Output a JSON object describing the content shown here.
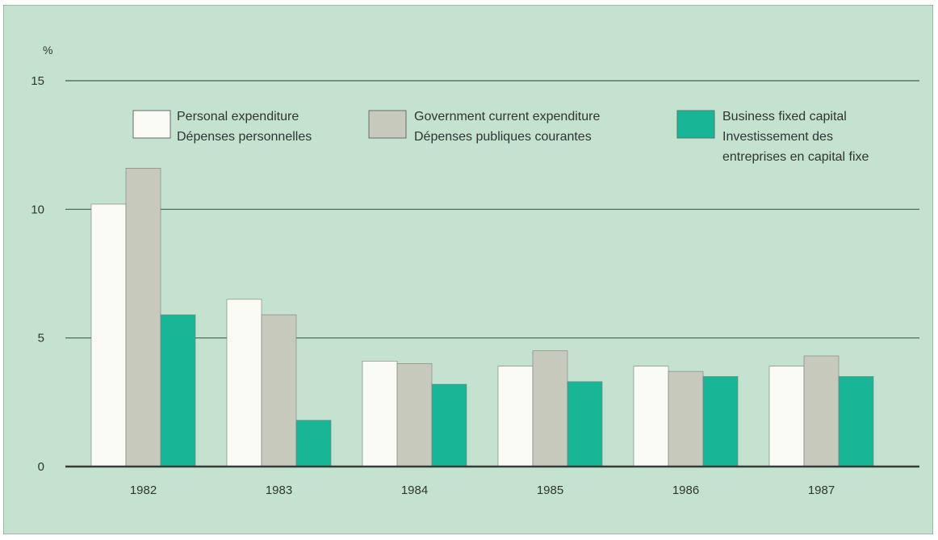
{
  "chart_data": {
    "type": "bar",
    "title": "",
    "xlabel": "",
    "ylabel": "%",
    "ylim": [
      0,
      15
    ],
    "yticks": [
      "0",
      "5",
      "10",
      "15"
    ],
    "grid": true,
    "legend_position": "top",
    "categories": [
      "1982",
      "1983",
      "1984",
      "1985",
      "1986",
      "1987"
    ],
    "series": [
      {
        "name": "Personal expenditure",
        "name_fr": "Dépenses personnelles",
        "color": "#fbfbf6",
        "values": [
          10.2,
          6.5,
          4.1,
          3.9,
          3.9,
          3.9
        ]
      },
      {
        "name": "Government current expenditure",
        "name_fr": "Dépenses publiques courantes",
        "color": "#c7c9bd",
        "values": [
          11.6,
          5.9,
          4.0,
          4.5,
          3.7,
          4.3
        ]
      },
      {
        "name": "Business fixed capital",
        "name_fr": "Investissement des entreprises en capital fixe",
        "color": "#19b597",
        "values": [
          5.9,
          1.8,
          3.2,
          3.3,
          3.5,
          3.5
        ]
      }
    ]
  },
  "legend": [
    {
      "line1": "Personal expenditure",
      "line2": "Dépenses personnelles",
      "line3": ""
    },
    {
      "line1": "Government current expenditure",
      "line2": "Dépenses publiques courantes",
      "line3": ""
    },
    {
      "line1": "Business fixed capital",
      "line2": "Investissement des",
      "line3": "entreprises en capital fixe"
    }
  ]
}
